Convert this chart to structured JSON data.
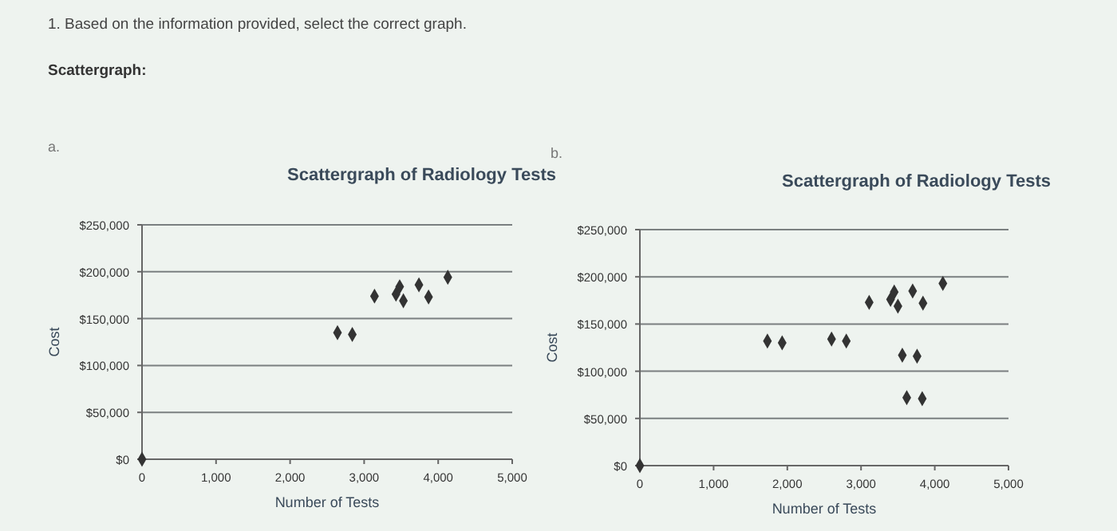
{
  "chart_data": [
    {
      "type": "scatter",
      "title": "Scattergraph of Radiology Tests",
      "xlabel": "Number of Tests",
      "ylabel": "Cost",
      "annotations": [
        "1. Based on the information provided, select the correct graph.",
        "Scattergraph:",
        "a."
      ],
      "series": [
        {
          "color": "#333333",
          "x": [
            0,
            2640,
            2840,
            3140,
            3430,
            3480,
            3530,
            3740,
            3870,
            4130
          ],
          "values": [
            0,
            135000,
            133000,
            174000,
            176000,
            184000,
            169000,
            186000,
            173000,
            194000
          ]
        }
      ],
      "xlim": [
        0,
        5000
      ],
      "xticks": [
        0,
        {
          "value": 1000,
          "label": "1,000"
        },
        {
          "value": 2000,
          "label": "2,000"
        },
        {
          "value": 3000,
          "label": "3,000"
        },
        {
          "value": 4000,
          "label": "4,000"
        },
        {
          "value": 5000,
          "label": "5,000"
        }
      ],
      "ylim": [
        0,
        250000
      ],
      "yticks": [
        {
          "value": 0,
          "label": "$0"
        },
        {
          "value": 50000,
          "label": "$50,000"
        },
        {
          "value": 100000,
          "label": "$100,000"
        },
        {
          "value": 150000,
          "label": "$150,000"
        },
        {
          "value": 200000,
          "label": "$200,000"
        },
        {
          "value": 250000,
          "label": "$250,000"
        }
      ],
      "grid": "y",
      "marker": "diamond"
    },
    {
      "type": "scatter",
      "title": "Scattergraph of Radiology Tests",
      "xlabel": "Number of Tests",
      "ylabel": "Cost",
      "annotations": [
        "b."
      ],
      "series": [
        {
          "color": "#333333",
          "x": [
            0,
            1730,
            1930,
            2600,
            2800,
            3110,
            3400,
            3450,
            3500,
            3700,
            3840,
            4110,
            3560,
            3760,
            3620,
            3830
          ],
          "values": [
            0,
            132000,
            130000,
            134000,
            132000,
            173000,
            176000,
            184000,
            169000,
            185000,
            172000,
            193000,
            117000,
            116000,
            72000,
            71000
          ]
        }
      ],
      "xlim": [
        0,
        5000
      ],
      "xticks": [
        0,
        {
          "value": 1000,
          "label": "1,000"
        },
        {
          "value": 2000,
          "label": "2,000"
        },
        {
          "value": 3000,
          "label": "3,000"
        },
        {
          "value": 4000,
          "label": "4,000"
        },
        {
          "value": 5000,
          "label": "5,000"
        }
      ],
      "ylim": [
        0,
        250000
      ],
      "yticks": [
        {
          "value": 0,
          "label": "$0"
        },
        {
          "value": 50000,
          "label": "$50,000"
        },
        {
          "value": 100000,
          "label": "$100,000"
        },
        {
          "value": 150000,
          "label": "$150,000"
        },
        {
          "value": 200000,
          "label": "$200,000"
        },
        {
          "value": 250000,
          "label": "$250,000"
        }
      ],
      "grid": "y",
      "marker": "diamond"
    }
  ]
}
